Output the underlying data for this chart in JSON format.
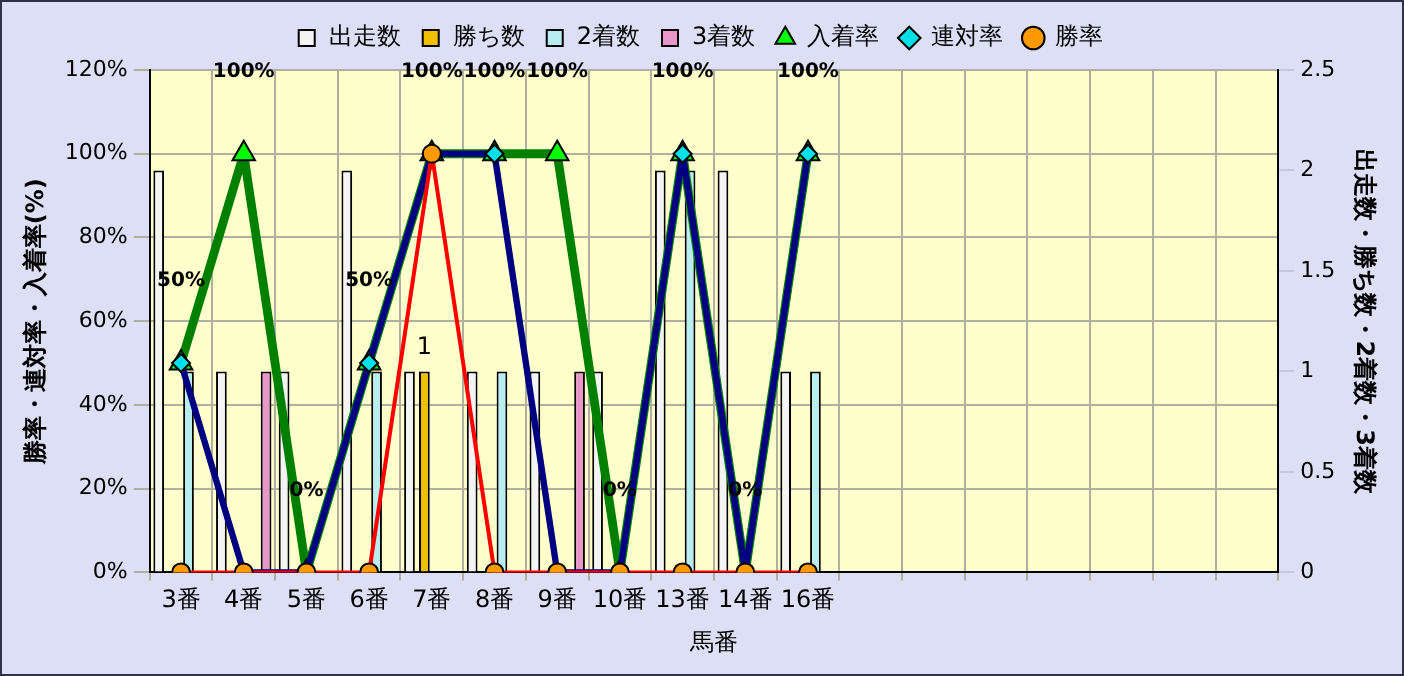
{
  "chart_data": {
    "type": "bar",
    "xlabel": "馬番",
    "ylabel": "勝率・連対率・入着率(%)",
    "y2label": "出走数・勝ち数・2着数・3着数",
    "categories": [
      "3番",
      "4番",
      "5番",
      "6番",
      "7番",
      "8番",
      "9番",
      "10番",
      "13番",
      "14番",
      "16番",
      null,
      null,
      null,
      null,
      null,
      null,
      null
    ],
    "series": [
      {
        "name": "出走数",
        "axis": "y2",
        "color": "#f4f4f4",
        "values": [
          2,
          1,
          1,
          2,
          1,
          1,
          1,
          1,
          2,
          2,
          1,
          null,
          null,
          null,
          null,
          null,
          null,
          null
        ]
      },
      {
        "name": "勝ち数",
        "axis": "y2",
        "color": "#f0c000",
        "values": [
          0,
          0,
          0,
          0,
          1,
          0,
          0,
          0,
          0,
          0,
          0,
          null,
          null,
          null,
          null,
          null,
          null,
          null
        ],
        "value_labels": [
          null,
          null,
          null,
          null,
          "1",
          null,
          null,
          null,
          null,
          null,
          null,
          null,
          null,
          null,
          null,
          null,
          null,
          null
        ]
      },
      {
        "name": "2着数",
        "axis": "y2",
        "color": "#b8eef0",
        "values": [
          1,
          0,
          0,
          1,
          0,
          1,
          0,
          0,
          2,
          0,
          1,
          null,
          null,
          null,
          null,
          null,
          null,
          null
        ]
      },
      {
        "name": "3着数",
        "axis": "y2",
        "color": "#e898c8",
        "values": [
          0,
          1,
          0,
          0,
          0,
          0,
          1,
          0,
          0,
          0,
          0,
          null,
          null,
          null,
          null,
          null,
          null,
          null
        ]
      },
      {
        "name": "入着率",
        "type": "line",
        "color": "#008000",
        "marker": "triangle",
        "values": [
          50,
          100,
          0,
          50,
          100,
          100,
          100,
          0,
          100,
          0,
          100,
          null,
          null,
          null,
          null,
          null,
          null,
          null
        ],
        "value_labels": [
          "50%",
          "100%",
          "0%",
          "50%",
          "100%",
          "100%",
          "100%",
          "0%",
          "100%",
          "0%",
          "100%",
          null,
          null,
          null,
          null,
          null,
          null,
          null
        ]
      },
      {
        "name": "連対率",
        "type": "line",
        "color": "#000080",
        "marker": "diamond",
        "values": [
          50,
          0,
          0,
          50,
          100,
          100,
          0,
          0,
          100,
          0,
          100,
          null,
          null,
          null,
          null,
          null,
          null,
          null
        ]
      },
      {
        "name": "勝率",
        "type": "line",
        "color": "#ff0000",
        "marker": "circle",
        "values": [
          0,
          0,
          0,
          0,
          100,
          0,
          0,
          0,
          0,
          0,
          0,
          null,
          null,
          null,
          null,
          null,
          null,
          null
        ]
      }
    ],
    "ylim": [
      0,
      120
    ],
    "yticks": [
      {
        "value": 0,
        "label": "0%"
      },
      {
        "value": 20,
        "label": "20%"
      },
      {
        "value": 40,
        "label": "40%"
      },
      {
        "value": 60,
        "label": "60%"
      },
      {
        "value": 80,
        "label": "80%"
      },
      {
        "value": 100,
        "label": "100%"
      },
      {
        "value": 120,
        "label": "120%"
      }
    ],
    "y2lim": [
      0,
      2.5
    ],
    "y2ticks": [
      0,
      0.5,
      1,
      1.5,
      2,
      2.5
    ],
    "grid": true,
    "legend": "top"
  }
}
